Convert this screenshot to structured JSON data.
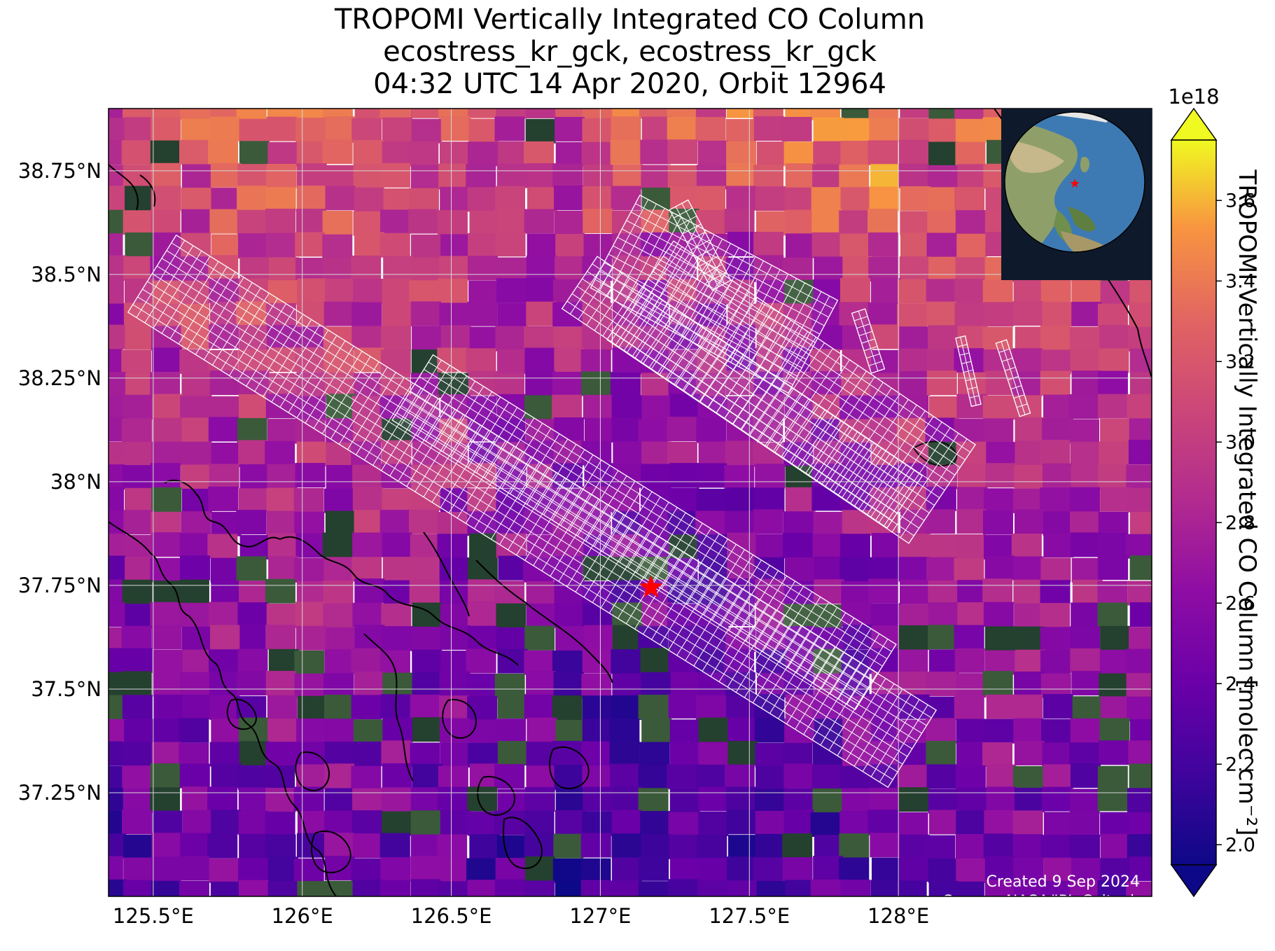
{
  "title": {
    "line1": "TROPOMI Vertically Integrated CO Column",
    "line2": "ecostress_kr_gck, ecostress_kr_gck",
    "line3": "04:32 UTC 14 Apr 2020, Orbit 12964"
  },
  "map": {
    "lon_range": [
      125.35,
      128.85
    ],
    "lat_range": [
      37.0,
      38.9
    ],
    "lat_ticks": [
      "38.75°N",
      "38.5°N",
      "38.25°N",
      "38°N",
      "37.75°N",
      "37.5°N",
      "37.25°N"
    ],
    "lon_ticks": [
      "125.5°E",
      "126°E",
      "126.5°E",
      "127°E",
      "127.5°E",
      "128°E"
    ],
    "grid": true,
    "site_marker": {
      "lon": 127.17,
      "lat": 37.745,
      "symbol": "star",
      "color": "#ff0000"
    },
    "inset_globe": "top-right",
    "colors": {
      "overlay_grid": "#ffffff",
      "gridlines": "#cfcfcf",
      "coastline": "#000000"
    }
  },
  "colorbar": {
    "label": "TROPOMI Vertically Integrated CO Column [molec cm⁻²]",
    "multiplier": "1e18",
    "ticks": [
      "2.0",
      "2.2",
      "2.4",
      "2.6",
      "2.8",
      "3.0",
      "3.2",
      "3.4",
      "3.6"
    ],
    "range": [
      1.95,
      3.75
    ],
    "colormap": "plasma",
    "extend": "both"
  },
  "credits": {
    "created": "Created 9 Sep 2024",
    "source": "Source: NASA/JPL-Caltech"
  }
}
